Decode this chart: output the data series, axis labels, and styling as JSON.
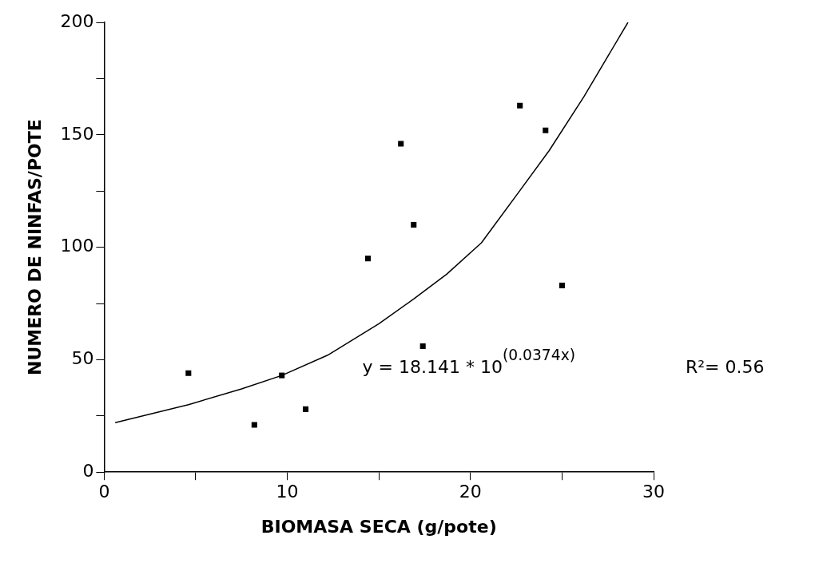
{
  "chart_data": {
    "type": "scatter",
    "xlabel": "BIOMASA SECA (g/pote)",
    "ylabel": "NUMERO DE NINFAS/POTE",
    "xlim": [
      0,
      30
    ],
    "xticks": [
      0,
      {
        "value": 5,
        "label": null
      },
      10,
      {
        "value": 15,
        "label": null
      },
      20,
      {
        "value": 25,
        "label": null
      },
      30
    ],
    "ylim": [
      0,
      200
    ],
    "yticks": [
      0,
      {
        "value": 25,
        "label": null
      },
      50,
      {
        "value": 75,
        "label": null
      },
      100,
      {
        "value": 125,
        "label": null
      },
      150,
      {
        "value": 175,
        "label": null
      },
      200
    ],
    "grid": false,
    "legend": false,
    "series": [
      {
        "color": "#000000",
        "marker": "square",
        "x": [
          4.6,
          8.2,
          9.7,
          11.0,
          14.4,
          16.2,
          16.9,
          17.4,
          22.7,
          24.1,
          25.0
        ],
        "values": [
          44,
          21,
          43,
          28,
          95,
          146,
          110,
          56,
          163,
          152,
          83
        ]
      },
      {
        "type": "line",
        "color": "#000000",
        "marker": "none",
        "line_style": "solid",
        "x": [
          0.6,
          4.6,
          7.5,
          9.7,
          12.2,
          15,
          16.9,
          18.7,
          20.6,
          22.5,
          24.3,
          26.2,
          28.6
        ],
        "values": [
          22,
          30,
          37,
          43,
          52,
          66,
          77,
          88,
          102,
          123,
          143,
          167,
          200
        ]
      }
    ],
    "annotations": [
      "y = 18.141 * 10$^{(0.0374x)}$",
      "R²= 0.56"
    ]
  }
}
